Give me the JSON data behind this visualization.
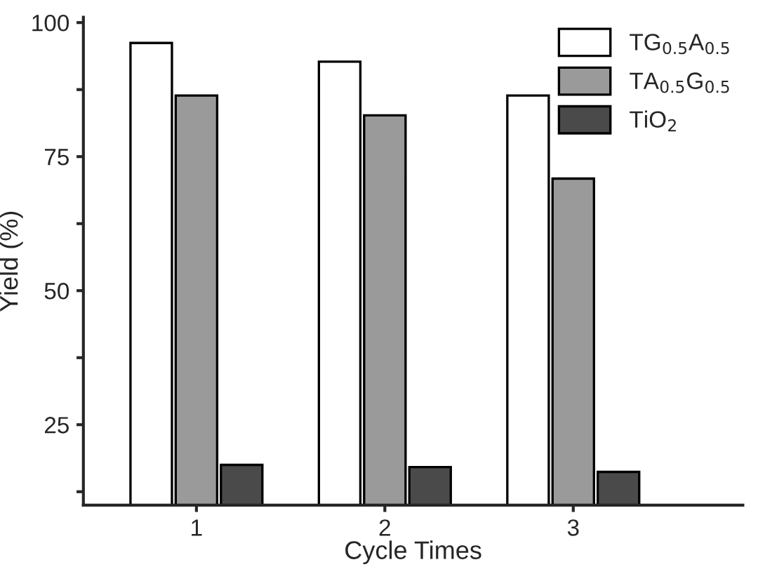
{
  "chart_data": {
    "type": "bar",
    "xlabel": "Cycle Times",
    "ylabel": "Yield (%)",
    "categories": [
      "1",
      "2",
      "3"
    ],
    "series": [
      {
        "name": "TG$_{0.5}$A$_{0.5}$",
        "color": "#ffffff",
        "values": [
          96.2,
          92.7,
          86.4
        ]
      },
      {
        "name": "TA$_{0.5}$G$_{0.5}$",
        "color": "#9a9a9a",
        "values": [
          86.4,
          82.7,
          70.9
        ]
      },
      {
        "name": "TiO$_{2}$",
        "color": "#4a4a4a",
        "values": [
          17.5,
          17.1,
          16.2
        ]
      }
    ],
    "ylim": [
      10,
      101
    ],
    "yticks": [
      {
        "value": 12.5,
        "label": null
      },
      25,
      {
        "value": 37.5,
        "label": null
      },
      50,
      {
        "value": 62.5,
        "label": null
      },
      75,
      {
        "value": 87.5,
        "label": null
      },
      100
    ],
    "grid": false,
    "legend": "top right"
  }
}
